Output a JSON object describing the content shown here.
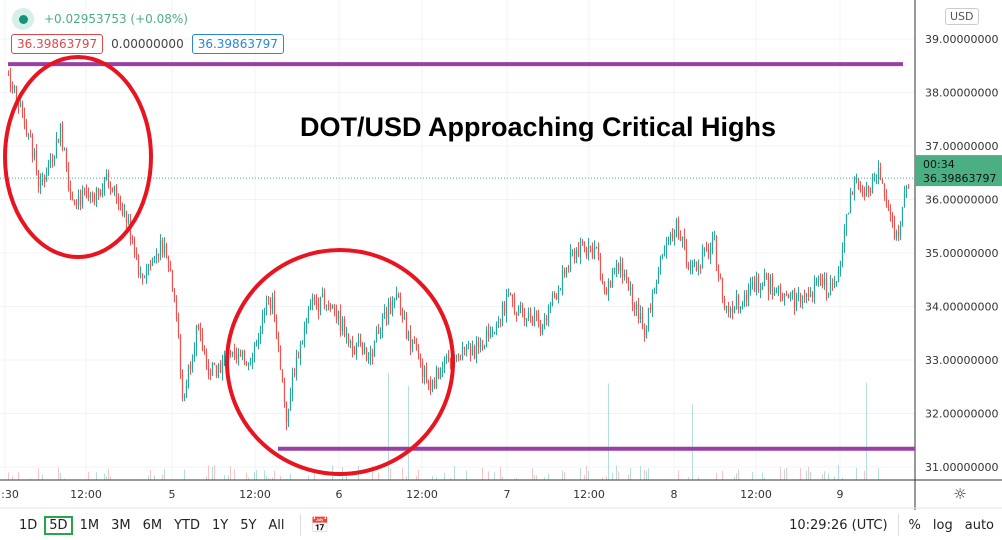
{
  "legend": {
    "change": "+0.02953753 (+0.08%)",
    "open": "36.39863797",
    "mid": "0.00000000",
    "close": "36.39863797"
  },
  "currency": "USD",
  "annotation_title": "DOT/USD Approaching Critical Highs",
  "colors": {
    "up": "#26a69a",
    "down": "#ef5350",
    "annotation_circle": "#e8141f",
    "annotation_line": "#9b3fa8",
    "last_price": "#4caf84"
  },
  "last_price": {
    "value": "36.39863797",
    "countdown": "00:34"
  },
  "toolbar": {
    "ranges": [
      "1D",
      "5D",
      "1M",
      "3M",
      "6M",
      "YTD",
      "1Y",
      "5Y",
      "All"
    ],
    "active_range": "5D",
    "time": "10:29:26 (UTC)",
    "percent": "%",
    "log": "log",
    "auto": "auto"
  },
  "chart_data": {
    "type": "candlestick",
    "ylim": [
      30.7,
      39.4
    ],
    "y_ticks": [
      "39.00000000",
      "38.00000000",
      "37.00000000",
      "36.00000000",
      "35.00000000",
      "34.00000000",
      "33.00000000",
      "32.00000000",
      "31.00000000"
    ],
    "x_ticks": [
      ":30",
      "12:00",
      "5",
      "12:00",
      "6",
      "12:00",
      "7",
      "12:00",
      "8",
      "12:00",
      "9"
    ],
    "grid": true,
    "resistance": 38.53,
    "support": 31.34,
    "close_path": [
      [
        "4 00:30",
        38.33
      ],
      [
        "4 02:00",
        37.86
      ],
      [
        "4 04:00",
        36.93
      ],
      [
        "4 05:00",
        36.18
      ],
      [
        "4 08:00",
        37.3
      ],
      [
        "4 09:30",
        36.08
      ],
      [
        "4 12:00",
        35.99
      ],
      [
        "4 14:30",
        36.36
      ],
      [
        "4 16:30",
        35.99
      ],
      [
        "4 18:30",
        35.24
      ],
      [
        "4 19:30",
        34.5
      ],
      [
        "4 21:00",
        34.87
      ],
      [
        "4 23:00",
        35.24
      ],
      [
        "5 00:30",
        34.12
      ],
      [
        "5 01:30",
        32.25
      ],
      [
        "5 03:30",
        33.56
      ],
      [
        "5 05:30",
        32.81
      ],
      [
        "5 08:30",
        33.0
      ],
      [
        "5 11:00",
        33.0
      ],
      [
        "5 14:30",
        34.21
      ],
      [
        "5 15:30",
        33.0
      ],
      [
        "5 16:30",
        31.88
      ],
      [
        "5 17:30",
        32.81
      ],
      [
        "5 20:00",
        34.03
      ],
      [
        "5 22:30",
        34.12
      ],
      [
        "6 01:30",
        33.37
      ],
      [
        "6 04:30",
        33.0
      ],
      [
        "6 06:00",
        33.75
      ],
      [
        "6 08:30",
        34.12
      ],
      [
        "6 10:00",
        33.37
      ],
      [
        "6 13:00",
        32.53
      ],
      [
        "6 16:00",
        33.0
      ],
      [
        "6 20:00",
        33.19
      ],
      [
        "7 00:30",
        34.12
      ],
      [
        "7 05:00",
        33.65
      ],
      [
        "7 10:00",
        35.06
      ],
      [
        "7 13:00",
        35.06
      ],
      [
        "7 14:00",
        34.21
      ],
      [
        "7 16:30",
        34.78
      ],
      [
        "7 20:00",
        33.56
      ],
      [
        "7 22:00",
        34.68
      ],
      [
        "8 00:30",
        35.52
      ],
      [
        "8 02:30",
        34.68
      ],
      [
        "8 06:00",
        35.15
      ],
      [
        "8 07:30",
        33.93
      ],
      [
        "8 09:30",
        34.12
      ],
      [
        "8 12:30",
        34.5
      ],
      [
        "8 15:30",
        34.31
      ],
      [
        "8 18:00",
        34.12
      ],
      [
        "8 21:00",
        34.4
      ],
      [
        "8 23:00",
        34.31
      ],
      [
        "9 00:30",
        35.24
      ],
      [
        "9 02:00",
        36.36
      ],
      [
        "9 03:30",
        35.99
      ],
      [
        "9 05:30",
        36.55
      ],
      [
        "9 07:00",
        35.71
      ],
      [
        "9 08:00",
        35.24
      ],
      [
        "9 10:00",
        36.4
      ]
    ]
  }
}
